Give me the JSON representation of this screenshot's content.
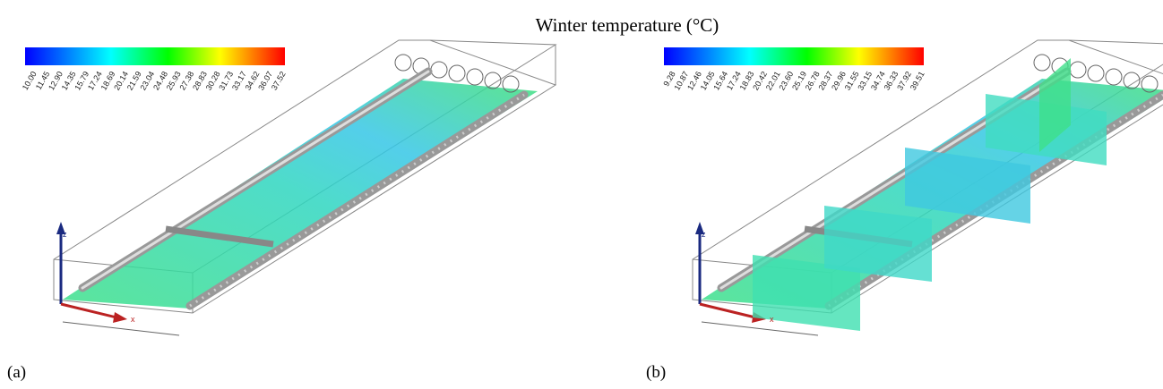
{
  "title": "Winter temperature (°C)",
  "panels": [
    {
      "label": "(a)",
      "axes": [
        "z",
        "x"
      ],
      "colorbar": {
        "labels": [
          "10.00",
          "11.45",
          "12.90",
          "14.35",
          "15.79",
          "17.24",
          "18.69",
          "20.14",
          "21.59",
          "23.04",
          "24.48",
          "25.93",
          "27.38",
          "28.83",
          "30.28",
          "31.73",
          "33.17",
          "34.62",
          "36.07",
          "37.52"
        ]
      }
    },
    {
      "label": "(b)",
      "axes": [
        "z",
        "x"
      ],
      "colorbar": {
        "labels": [
          "9.28",
          "10.87",
          "12.46",
          "14.05",
          "15.64",
          "17.24",
          "18.83",
          "20.42",
          "22.01",
          "23.60",
          "25.19",
          "26.78",
          "28.37",
          "29.96",
          "31.55",
          "33.15",
          "34.74",
          "36.33",
          "37.92",
          "39.51"
        ]
      }
    }
  ]
}
